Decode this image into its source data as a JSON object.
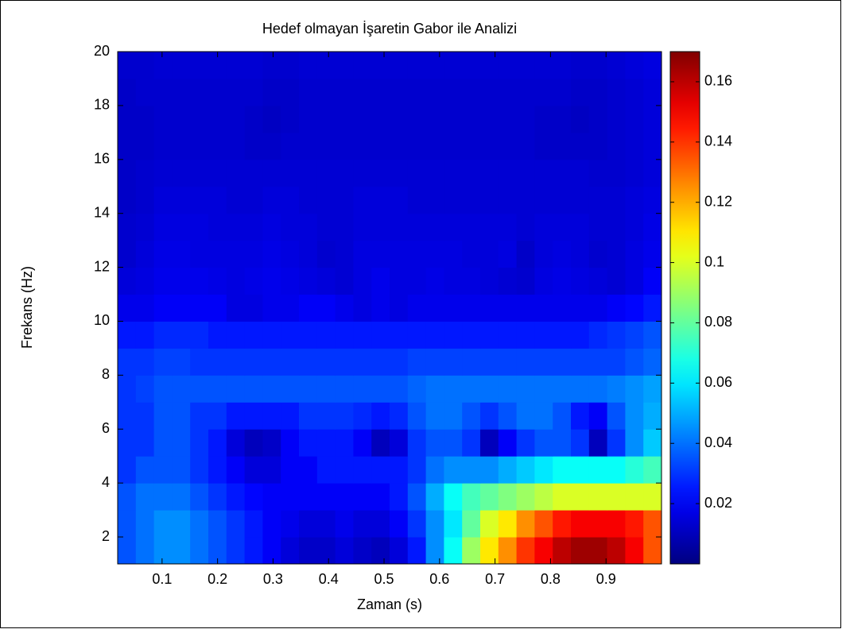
{
  "chart_data": {
    "type": "heatmap",
    "title": "Hedef olmayan İşaretin Gabor ile Analizi",
    "x_label": "Zaman (s)",
    "y_label": "Frekans (Hz)",
    "xlim": [
      0.02,
      1.0
    ],
    "ylim": [
      1,
      20
    ],
    "xticks": [
      0.1,
      0.2,
      0.3,
      0.4,
      0.5,
      0.6,
      0.7,
      0.8,
      0.9
    ],
    "yticks": [
      2,
      4,
      6,
      8,
      10,
      12,
      14,
      16,
      18,
      20
    ],
    "colormap": "jet",
    "clim": [
      0,
      0.17
    ],
    "colorbar_ticks": [
      0.02,
      0.04,
      0.06,
      0.08,
      0.1,
      0.12,
      0.14,
      0.16
    ],
    "z": [
      [
        0.035,
        0.04,
        0.045,
        0.045,
        0.04,
        0.035,
        0.03,
        0.025,
        0.02,
        0.015,
        0.012,
        0.012,
        0.015,
        0.012,
        0.01,
        0.015,
        0.025,
        0.045,
        0.065,
        0.09,
        0.11,
        0.125,
        0.14,
        0.15,
        0.16,
        0.165,
        0.165,
        0.16,
        0.15,
        0.135
      ],
      [
        0.035,
        0.04,
        0.045,
        0.045,
        0.04,
        0.035,
        0.03,
        0.025,
        0.02,
        0.018,
        0.015,
        0.015,
        0.018,
        0.015,
        0.015,
        0.02,
        0.03,
        0.045,
        0.06,
        0.08,
        0.1,
        0.11,
        0.125,
        0.135,
        0.145,
        0.15,
        0.15,
        0.15,
        0.145,
        0.135
      ],
      [
        0.035,
        0.04,
        0.04,
        0.04,
        0.035,
        0.03,
        0.025,
        0.022,
        0.02,
        0.02,
        0.02,
        0.02,
        0.02,
        0.02,
        0.02,
        0.025,
        0.035,
        0.05,
        0.065,
        0.075,
        0.08,
        0.085,
        0.09,
        0.095,
        0.1,
        0.1,
        0.1,
        0.1,
        0.1,
        0.1
      ],
      [
        0.03,
        0.035,
        0.035,
        0.035,
        0.03,
        0.025,
        0.02,
        0.015,
        0.015,
        0.02,
        0.02,
        0.025,
        0.025,
        0.025,
        0.025,
        0.025,
        0.03,
        0.04,
        0.045,
        0.045,
        0.045,
        0.05,
        0.055,
        0.06,
        0.065,
        0.065,
        0.065,
        0.065,
        0.07,
        0.075
      ],
      [
        0.03,
        0.03,
        0.035,
        0.035,
        0.03,
        0.025,
        0.015,
        0.01,
        0.012,
        0.02,
        0.025,
        0.025,
        0.025,
        0.02,
        0.01,
        0.015,
        0.03,
        0.035,
        0.035,
        0.03,
        0.01,
        0.02,
        0.03,
        0.035,
        0.035,
        0.03,
        0.01,
        0.03,
        0.045,
        0.055
      ],
      [
        0.03,
        0.03,
        0.035,
        0.035,
        0.03,
        0.03,
        0.025,
        0.025,
        0.025,
        0.025,
        0.03,
        0.03,
        0.03,
        0.028,
        0.025,
        0.028,
        0.035,
        0.04,
        0.04,
        0.035,
        0.03,
        0.035,
        0.04,
        0.04,
        0.035,
        0.025,
        0.02,
        0.035,
        0.045,
        0.05
      ],
      [
        0.03,
        0.032,
        0.035,
        0.035,
        0.035,
        0.035,
        0.035,
        0.035,
        0.035,
        0.035,
        0.035,
        0.035,
        0.035,
        0.035,
        0.035,
        0.035,
        0.038,
        0.04,
        0.04,
        0.04,
        0.04,
        0.04,
        0.04,
        0.04,
        0.04,
        0.04,
        0.04,
        0.042,
        0.045,
        0.048
      ],
      [
        0.03,
        0.03,
        0.032,
        0.032,
        0.03,
        0.03,
        0.03,
        0.03,
        0.03,
        0.03,
        0.03,
        0.03,
        0.03,
        0.03,
        0.03,
        0.03,
        0.032,
        0.032,
        0.032,
        0.032,
        0.032,
        0.032,
        0.032,
        0.032,
        0.032,
        0.032,
        0.032,
        0.032,
        0.035,
        0.038
      ],
      [
        0.025,
        0.025,
        0.028,
        0.028,
        0.028,
        0.025,
        0.025,
        0.025,
        0.025,
        0.025,
        0.025,
        0.025,
        0.025,
        0.025,
        0.025,
        0.025,
        0.025,
        0.025,
        0.025,
        0.025,
        0.025,
        0.025,
        0.025,
        0.025,
        0.025,
        0.025,
        0.028,
        0.03,
        0.032,
        0.035
      ],
      [
        0.018,
        0.018,
        0.02,
        0.02,
        0.02,
        0.02,
        0.016,
        0.016,
        0.018,
        0.018,
        0.02,
        0.02,
        0.018,
        0.016,
        0.018,
        0.016,
        0.018,
        0.018,
        0.018,
        0.018,
        0.018,
        0.018,
        0.018,
        0.018,
        0.018,
        0.018,
        0.018,
        0.02,
        0.022,
        0.025
      ],
      [
        0.015,
        0.016,
        0.018,
        0.018,
        0.018,
        0.017,
        0.016,
        0.017,
        0.018,
        0.017,
        0.016,
        0.015,
        0.014,
        0.016,
        0.018,
        0.016,
        0.016,
        0.017,
        0.016,
        0.016,
        0.015,
        0.014,
        0.013,
        0.016,
        0.017,
        0.016,
        0.015,
        0.014,
        0.016,
        0.02
      ],
      [
        0.013,
        0.015,
        0.017,
        0.017,
        0.016,
        0.016,
        0.016,
        0.016,
        0.017,
        0.016,
        0.015,
        0.013,
        0.014,
        0.016,
        0.016,
        0.016,
        0.016,
        0.016,
        0.016,
        0.015,
        0.015,
        0.016,
        0.012,
        0.015,
        0.016,
        0.015,
        0.013,
        0.014,
        0.016,
        0.018
      ],
      [
        0.013,
        0.014,
        0.016,
        0.016,
        0.016,
        0.015,
        0.015,
        0.015,
        0.016,
        0.015,
        0.015,
        0.014,
        0.014,
        0.015,
        0.015,
        0.015,
        0.015,
        0.015,
        0.015,
        0.015,
        0.015,
        0.015,
        0.014,
        0.015,
        0.015,
        0.015,
        0.014,
        0.014,
        0.015,
        0.017
      ],
      [
        0.012,
        0.013,
        0.015,
        0.015,
        0.015,
        0.015,
        0.014,
        0.014,
        0.015,
        0.015,
        0.014,
        0.014,
        0.014,
        0.015,
        0.015,
        0.015,
        0.014,
        0.014,
        0.014,
        0.014,
        0.014,
        0.014,
        0.014,
        0.014,
        0.014,
        0.014,
        0.014,
        0.014,
        0.015,
        0.016
      ],
      [
        0.012,
        0.013,
        0.014,
        0.014,
        0.014,
        0.014,
        0.014,
        0.014,
        0.014,
        0.014,
        0.014,
        0.014,
        0.014,
        0.014,
        0.014,
        0.014,
        0.014,
        0.014,
        0.014,
        0.014,
        0.014,
        0.014,
        0.014,
        0.014,
        0.014,
        0.014,
        0.013,
        0.013,
        0.014,
        0.015
      ],
      [
        0.012,
        0.012,
        0.013,
        0.013,
        0.013,
        0.013,
        0.013,
        0.012,
        0.012,
        0.013,
        0.013,
        0.013,
        0.013,
        0.013,
        0.013,
        0.013,
        0.013,
        0.013,
        0.013,
        0.013,
        0.013,
        0.013,
        0.013,
        0.012,
        0.012,
        0.012,
        0.012,
        0.013,
        0.014,
        0.015
      ],
      [
        0.012,
        0.012,
        0.013,
        0.013,
        0.013,
        0.013,
        0.013,
        0.012,
        0.011,
        0.012,
        0.013,
        0.013,
        0.013,
        0.013,
        0.013,
        0.013,
        0.013,
        0.013,
        0.013,
        0.013,
        0.013,
        0.013,
        0.013,
        0.012,
        0.012,
        0.011,
        0.012,
        0.013,
        0.014,
        0.015
      ],
      [
        0.012,
        0.013,
        0.013,
        0.013,
        0.013,
        0.013,
        0.013,
        0.013,
        0.012,
        0.012,
        0.013,
        0.013,
        0.013,
        0.013,
        0.013,
        0.013,
        0.013,
        0.013,
        0.013,
        0.013,
        0.013,
        0.013,
        0.013,
        0.013,
        0.013,
        0.012,
        0.012,
        0.013,
        0.014,
        0.015
      ],
      [
        0.013,
        0.013,
        0.014,
        0.014,
        0.014,
        0.014,
        0.014,
        0.014,
        0.013,
        0.013,
        0.014,
        0.014,
        0.014,
        0.014,
        0.014,
        0.014,
        0.014,
        0.014,
        0.014,
        0.014,
        0.014,
        0.014,
        0.014,
        0.014,
        0.014,
        0.013,
        0.013,
        0.014,
        0.015,
        0.016
      ]
    ]
  }
}
